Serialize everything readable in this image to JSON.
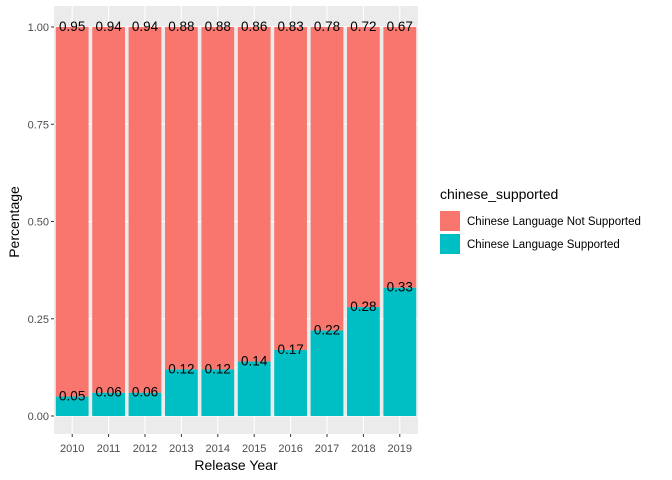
{
  "chart_data": {
    "type": "bar",
    "stacked": true,
    "categories": [
      "2010",
      "2011",
      "2012",
      "2013",
      "2014",
      "2015",
      "2016",
      "2017",
      "2018",
      "2019"
    ],
    "series": [
      {
        "name": "Chinese Language Not Supported",
        "color": "#F8766D",
        "values": [
          0.95,
          0.94,
          0.94,
          0.88,
          0.88,
          0.86,
          0.83,
          0.78,
          0.72,
          0.67
        ]
      },
      {
        "name": "Chinese Language Supported",
        "color": "#00BFC4",
        "values": [
          0.05,
          0.06,
          0.06,
          0.12,
          0.12,
          0.14,
          0.17,
          0.22,
          0.28,
          0.33
        ]
      }
    ],
    "xlabel": "Release Year",
    "ylabel": "Percentage",
    "ylim": [
      0,
      1
    ],
    "yticks": [
      "0.00",
      "0.25",
      "0.50",
      "0.75",
      "1.00"
    ],
    "legend": {
      "title": "chinese_supported",
      "position": "right"
    },
    "grid": true,
    "panel_background": "#EBEBEB"
  }
}
